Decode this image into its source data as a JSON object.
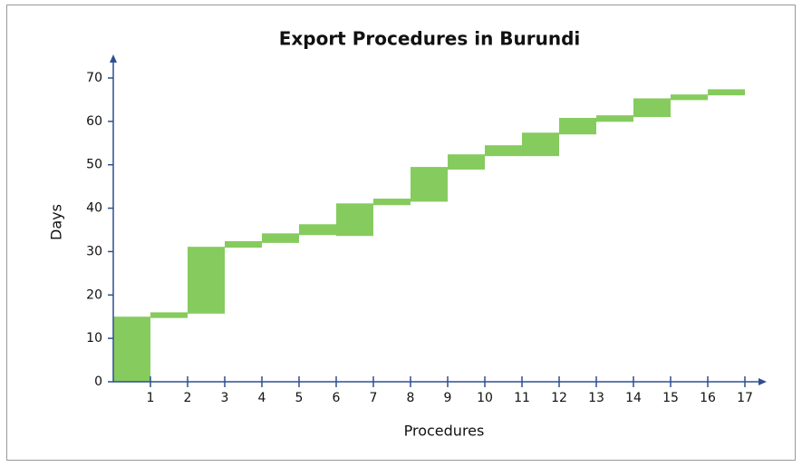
{
  "chart_data": {
    "type": "floating_bar",
    "title": "Export Procedures in Burundi",
    "x_label": "Procedures",
    "y_label": "Days",
    "start": [
      0,
      14.7,
      15.7,
      30.9,
      32,
      33.8,
      33.6,
      40.7,
      41.5,
      48.9,
      52,
      52,
      57,
      59.9,
      61,
      64.9,
      66
    ],
    "end": [
      15,
      16,
      31.1,
      32.4,
      34.2,
      36.3,
      41.1,
      42.2,
      49.5,
      52.4,
      54.5,
      57.4,
      60.8,
      61.4,
      65.3,
      66.2,
      67.4
    ],
    "color": "#86cb5e",
    "axis_color": "#2e4f8f",
    "xlim": [
      0,
      17
    ],
    "xticks": [
      1,
      2,
      3,
      4,
      5,
      6,
      7,
      8,
      9,
      10,
      11,
      12,
      13,
      14,
      15,
      16,
      17
    ],
    "ylim": [
      0,
      70
    ],
    "yticks": [
      0,
      10,
      20,
      30,
      40,
      50,
      60,
      70
    ]
  }
}
